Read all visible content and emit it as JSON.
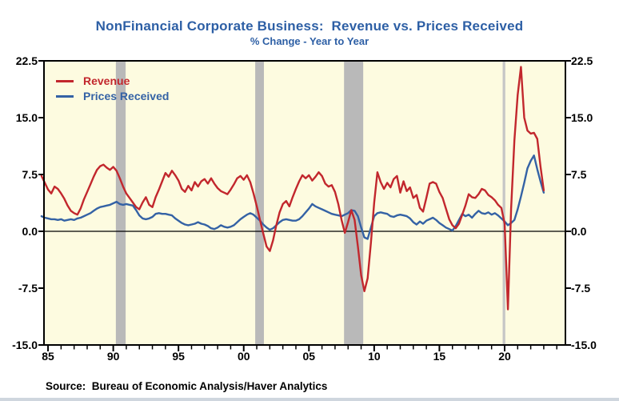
{
  "header": {
    "title": "NonFinancial Corporate Business:  Revenue vs. Prices Received",
    "subtitle": "% Change - Year to Year",
    "title_color": "#2D5FA5"
  },
  "source_note": "Source:  Bureau of Economic Analysis/Haver Analytics",
  "chart_data": {
    "type": "line",
    "title": "NonFinancial Corporate Business:  Revenue vs. Prices Received",
    "subtitle": "% Change - Year to Year",
    "xlabel": "",
    "ylabel": "% Change - Year to Year",
    "plot_bg": "#FDFBE0",
    "band_color": "#B9B9B9",
    "covid_band_color": "#C6C6C6",
    "axis_color": "#000000",
    "ylim": [
      -15.0,
      22.5
    ],
    "x_range": [
      1984.69,
      2024.66
    ],
    "grid": false,
    "zero_line": true,
    "legend_position": "top-left-inside",
    "y_ticks": [
      {
        "value": 22.5,
        "label": "22.5"
      },
      {
        "value": 15.0,
        "label": "15.0"
      },
      {
        "value": 7.5,
        "label": "7.5"
      },
      {
        "value": 0.0,
        "label": "0.0"
      },
      {
        "value": -7.5,
        "label": "-7.5"
      },
      {
        "value": -15.0,
        "label": "-15.0"
      }
    ],
    "x_ticks": [
      {
        "year": 1985,
        "label": "85"
      },
      {
        "year": 1990,
        "label": "90"
      },
      {
        "year": 1995,
        "label": "95"
      },
      {
        "year": 2000,
        "label": "00"
      },
      {
        "year": 2005,
        "label": "05"
      },
      {
        "year": 2010,
        "label": "10"
      },
      {
        "year": 2015,
        "label": "15"
      },
      {
        "year": 2020,
        "label": "20"
      }
    ],
    "minor_tick_start": 1985,
    "minor_tick_end": 2024,
    "minor_tick_step": 1,
    "recession_bands": [
      [
        1990.2,
        1990.95
      ],
      [
        2000.88,
        2001.55
      ],
      [
        2007.69,
        2009.16
      ]
    ],
    "covid_band": [
      2019.85,
      2020.05
    ],
    "x_start": 1984.5,
    "x_step": 0.25,
    "legend": [
      {
        "label": "Revenue",
        "color": "#C2272D"
      },
      {
        "label": "Prices Received",
        "color": "#3462A5"
      }
    ],
    "series": [
      {
        "name": "Revenue",
        "color": "#C2272D",
        "values": [
          7.3,
          6.4,
          5.5,
          5.0,
          5.9,
          5.6,
          5.0,
          4.3,
          3.4,
          2.7,
          2.4,
          2.2,
          3.0,
          4.2,
          5.2,
          6.2,
          7.2,
          8.1,
          8.6,
          8.8,
          8.4,
          8.1,
          8.5,
          8.0,
          7.0,
          5.9,
          5.0,
          4.4,
          3.8,
          3.2,
          2.9,
          3.8,
          4.5,
          3.5,
          3.2,
          4.5,
          5.5,
          6.6,
          7.7,
          7.2,
          8.0,
          7.4,
          6.7,
          5.6,
          5.2,
          6.0,
          5.4,
          6.5,
          5.9,
          6.6,
          6.9,
          6.3,
          7.0,
          6.3,
          5.7,
          5.3,
          5.1,
          4.9,
          5.5,
          6.2,
          7.0,
          7.3,
          6.8,
          7.4,
          6.5,
          5.0,
          3.3,
          1.5,
          -0.3,
          -2.0,
          -2.6,
          -1.2,
          0.8,
          2.5,
          3.6,
          4.0,
          3.3,
          4.5,
          5.6,
          6.6,
          7.4,
          7.0,
          7.4,
          6.7,
          7.2,
          7.8,
          7.3,
          6.3,
          5.9,
          6.1,
          5.2,
          3.6,
          1.5,
          -0.2,
          1.2,
          2.8,
          1.5,
          -2.0,
          -5.8,
          -7.9,
          -6.2,
          -1.5,
          3.8,
          7.8,
          6.5,
          5.6,
          6.4,
          5.8,
          6.9,
          7.3,
          5.1,
          6.6,
          5.3,
          5.8,
          4.4,
          4.8,
          3.1,
          2.6,
          4.4,
          6.3,
          6.5,
          6.3,
          5.2,
          4.4,
          3.0,
          1.6,
          0.8,
          0.4,
          1.0,
          2.2,
          3.4,
          4.9,
          4.5,
          4.4,
          4.9,
          5.6,
          5.4,
          4.8,
          4.5,
          4.1,
          3.5,
          3.1,
          1.0,
          -10.3,
          3.0,
          12.0,
          18.0,
          21.7,
          15.0,
          13.3,
          12.9,
          13.0,
          12.2,
          8.6,
          5.4
        ]
      },
      {
        "name": "Prices Received",
        "color": "#3462A5",
        "values": [
          2.0,
          1.8,
          1.7,
          1.6,
          1.6,
          1.5,
          1.6,
          1.4,
          1.5,
          1.6,
          1.5,
          1.7,
          1.8,
          2.0,
          2.2,
          2.4,
          2.7,
          3.0,
          3.2,
          3.3,
          3.4,
          3.5,
          3.7,
          3.9,
          3.6,
          3.5,
          3.6,
          3.5,
          3.4,
          2.8,
          2.1,
          1.7,
          1.6,
          1.7,
          1.9,
          2.3,
          2.4,
          2.3,
          2.3,
          2.2,
          2.1,
          1.7,
          1.4,
          1.1,
          0.9,
          0.8,
          0.9,
          1.0,
          1.2,
          1.0,
          0.9,
          0.7,
          0.4,
          0.3,
          0.5,
          0.8,
          0.6,
          0.5,
          0.6,
          0.8,
          1.2,
          1.6,
          1.9,
          2.2,
          2.4,
          2.2,
          1.8,
          1.4,
          0.9,
          0.5,
          0.2,
          0.4,
          0.8,
          1.2,
          1.5,
          1.6,
          1.5,
          1.4,
          1.4,
          1.6,
          2.0,
          2.5,
          3.0,
          3.6,
          3.3,
          3.1,
          2.9,
          2.7,
          2.5,
          2.3,
          2.2,
          2.1,
          2.0,
          2.2,
          2.4,
          2.8,
          2.7,
          2.0,
          0.5,
          -0.8,
          -1.0,
          0.5,
          2.0,
          2.4,
          2.5,
          2.4,
          2.3,
          2.0,
          1.9,
          2.1,
          2.2,
          2.1,
          2.0,
          1.7,
          1.2,
          0.9,
          1.3,
          1.0,
          1.4,
          1.6,
          1.8,
          1.5,
          1.1,
          0.8,
          0.5,
          0.3,
          0.1,
          0.7,
          1.5,
          2.3,
          2.0,
          2.2,
          1.8,
          2.3,
          2.7,
          2.4,
          2.3,
          2.5,
          2.2,
          2.4,
          2.1,
          1.7,
          1.3,
          0.8,
          1.1,
          1.5,
          2.9,
          4.6,
          6.4,
          8.3,
          9.3,
          10.0,
          8.2,
          6.6,
          5.1
        ]
      }
    ]
  }
}
